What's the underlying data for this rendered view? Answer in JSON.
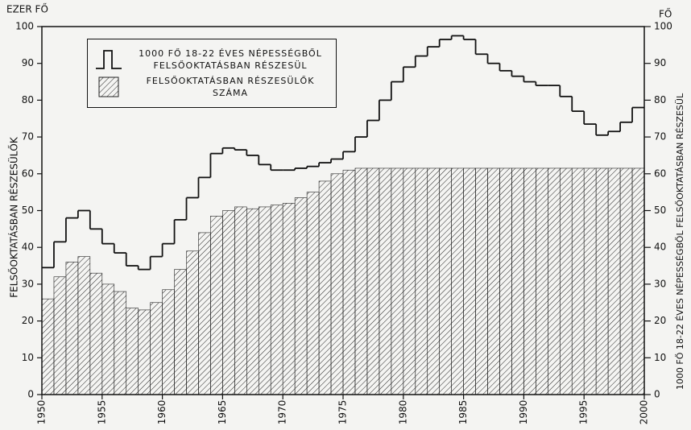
{
  "chart_data": {
    "type": "bar_step",
    "y_unit_label": "EZER FŐ",
    "y2_unit_label": "FŐ",
    "ylabel": "FELSŐOKTATÁSBAN RÉSZESÜLŐK",
    "y2label": "1000 FŐ 18-22 ÉVES NÉPESSÉGBŐL FELSŐOKTATÁSBAN RÉSZESÜL",
    "x": [
      1950,
      1951,
      1952,
      1953,
      1954,
      1955,
      1956,
      1957,
      1958,
      1959,
      1960,
      1961,
      1962,
      1963,
      1964,
      1965,
      1966,
      1967,
      1968,
      1969,
      1970,
      1971,
      1972,
      1973,
      1974,
      1975,
      1976,
      1977,
      1978,
      1979,
      1980,
      1981,
      1982,
      1983,
      1984,
      1985,
      1986,
      1987,
      1988,
      1989,
      1990,
      1991,
      1992,
      1993,
      1994,
      1995,
      1996,
      1997,
      1998,
      1999
    ],
    "series": [
      {
        "name": "1000 FŐ 18-22 ÉVES NÉPESSÉGBŐL FELSŐOKTATÁSBAN RÉSZESÜL",
        "kind": "step",
        "axis": "y2",
        "color": "#111111",
        "values": [
          34.5,
          41.5,
          48,
          50,
          45,
          41,
          38.5,
          35,
          34,
          37.5,
          41,
          47.5,
          53.5,
          59,
          65.5,
          67,
          66.5,
          65,
          62.5,
          61,
          61,
          61.5,
          62,
          63,
          64,
          66,
          70,
          74.5,
          80,
          85,
          89,
          92,
          94.5,
          96.5,
          97.5,
          96.5,
          92.5,
          90,
          88,
          86.5,
          85,
          84,
          84,
          81,
          77,
          73.5,
          70.5,
          71.5,
          74,
          78
        ]
      },
      {
        "name": "FELSŐOKTATÁSBAN RÉSZESÜLŐK SZÁMA",
        "kind": "bar",
        "axis": "y",
        "color": "#222222",
        "values": [
          26,
          32,
          36,
          37.5,
          33,
          30,
          28,
          23.5,
          23,
          25,
          28.5,
          34,
          39,
          44,
          48.5,
          50,
          51,
          50.5,
          51,
          51.5,
          52,
          53.5,
          55,
          58,
          60,
          61,
          61.5,
          61.5,
          61.5,
          61.5,
          61.5,
          61.5,
          61.5,
          61.5,
          61.5,
          61.5,
          61.5,
          61.5,
          61.5,
          61.5,
          61.5,
          61.5,
          61.5,
          61.5,
          61.5,
          61.5,
          61.5,
          61.5,
          61.5,
          61.5
        ]
      }
    ],
    "xlim": [
      1950,
      2000
    ],
    "xticks": [
      1950,
      1955,
      1960,
      1965,
      1970,
      1975,
      1980,
      1985,
      1990,
      1995,
      2000
    ],
    "ylim": [
      0,
      100
    ],
    "yticks": [
      0,
      10,
      20,
      30,
      40,
      50,
      60,
      70,
      80,
      90,
      100
    ],
    "y2lim": [
      0,
      100
    ],
    "y2ticks": [
      0,
      10,
      20,
      30,
      40,
      50,
      60,
      70,
      80,
      90,
      100
    ],
    "legend": "upper left"
  }
}
